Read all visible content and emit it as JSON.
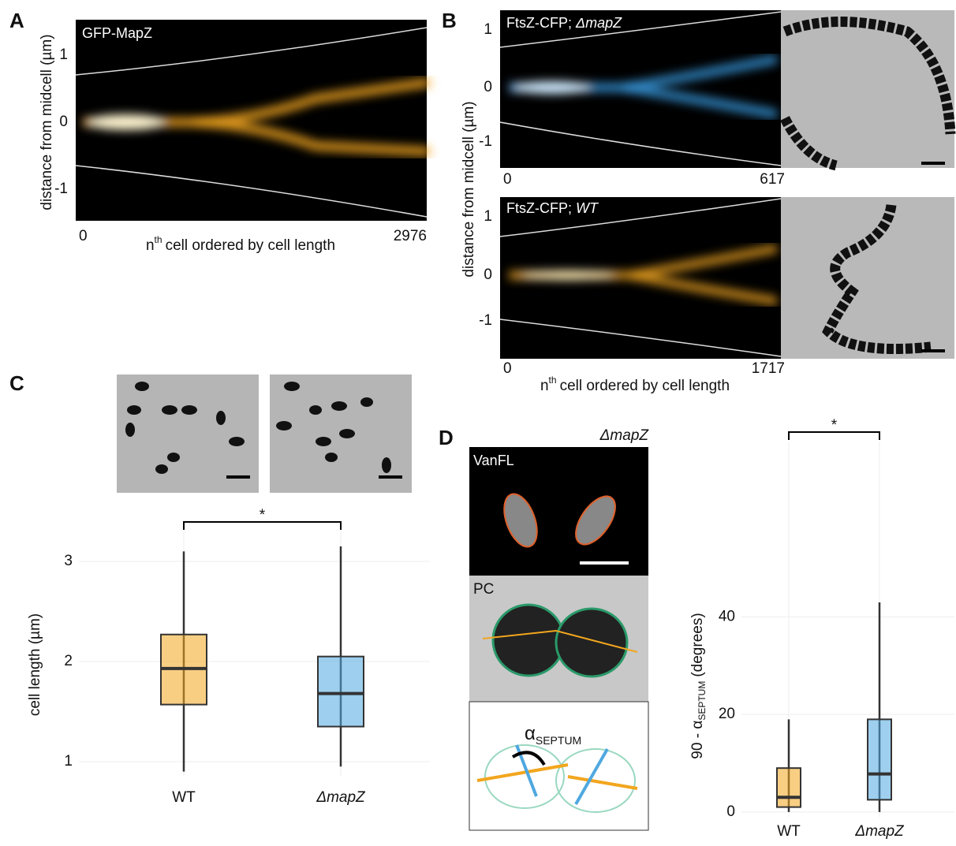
{
  "panel_labels": [
    "A",
    "B",
    "C",
    "D"
  ],
  "panel_a": {
    "title": "GFP-MapZ",
    "y_label": "distance from midcell (µm)",
    "yticks": [
      1,
      0,
      -1
    ],
    "xticks": [
      0,
      2976
    ],
    "x_label": {
      "n": "n",
      "sup": "th",
      "rest": "cell ordered by cell length"
    }
  },
  "panel_b": {
    "top": {
      "title": "FtsZ-CFP; ",
      "title_italic": "ΔmapZ",
      "yticks": [
        1,
        0,
        -1
      ],
      "xticks": [
        0,
        617
      ]
    },
    "bottom": {
      "title": "FtsZ-CFP; ",
      "title_italic": "WT",
      "yticks": [
        1,
        0,
        -1
      ],
      "xticks": [
        0,
        1717
      ]
    },
    "y_label": "distance from midcell (µm)",
    "x_label": {
      "n": "n",
      "sup": "th",
      "rest": "cell ordered by cell length"
    }
  },
  "panel_c": {
    "type": "box",
    "y_label": "cell length (µm)",
    "ylim": [
      0.85,
      3.3
    ],
    "yticks": [
      1,
      2,
      3
    ],
    "significance": "*",
    "series": [
      {
        "name": "WT",
        "color": "#f2a61e",
        "whisker_low": 0.9,
        "q1": 1.57,
        "median": 1.93,
        "q3": 2.27,
        "whisker_high": 3.1
      },
      {
        "name": "ΔmapZ",
        "color": "#4fa8e0",
        "whisker_low": 0.95,
        "q1": 1.35,
        "median": 1.68,
        "q3": 2.05,
        "whisker_high": 3.15
      }
    ]
  },
  "panel_d": {
    "genotype": "ΔmapZ",
    "image_labels": [
      "VanFL",
      "PC"
    ],
    "angle_symbol": "α",
    "angle_sub": "SEPTUM",
    "type": "box",
    "y_label": {
      "prefix": "90 - α",
      "sub": "SEPTUM",
      "suffix": "(degrees)"
    },
    "ylim": [
      -1,
      76
    ],
    "yticks": [
      0,
      20,
      40
    ],
    "significance": "*",
    "series": [
      {
        "name": "WT",
        "color": "#f2a61e",
        "whisker_low": 0,
        "q1": 1,
        "median": 3,
        "q3": 9,
        "whisker_high": 19
      },
      {
        "name": "ΔmapZ",
        "color": "#4fa8e0",
        "whisker_low": 0,
        "q1": 2.5,
        "median": 7.8,
        "q3": 19,
        "whisker_high": 43
      }
    ]
  }
}
